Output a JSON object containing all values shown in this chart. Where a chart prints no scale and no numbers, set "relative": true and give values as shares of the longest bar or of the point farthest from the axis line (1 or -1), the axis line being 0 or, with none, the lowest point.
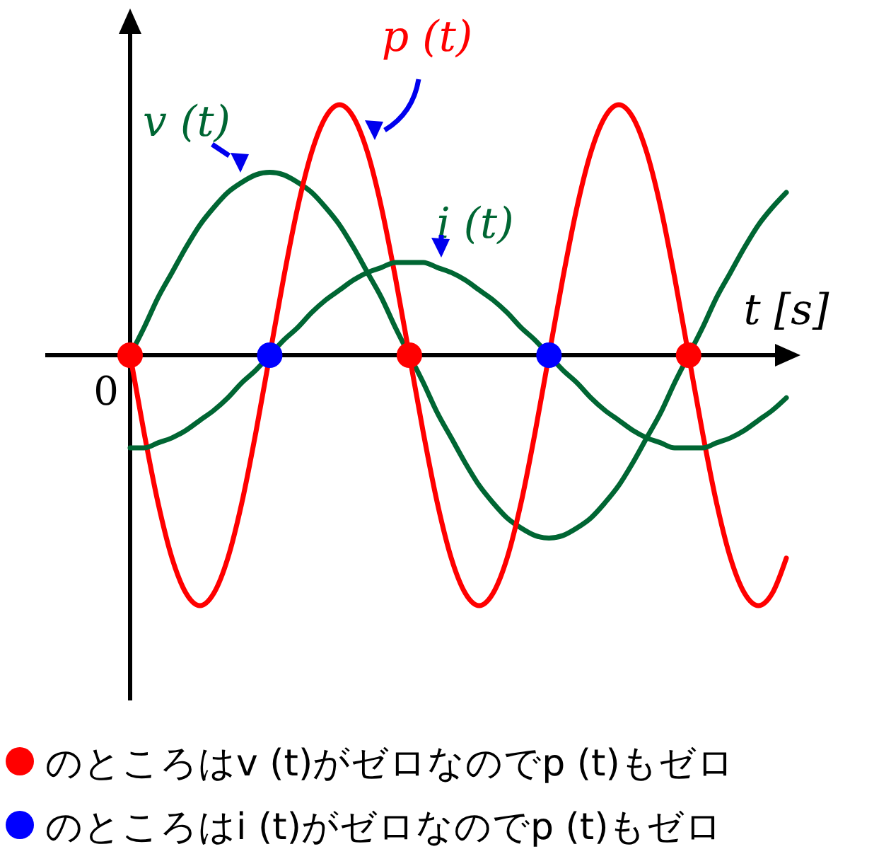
{
  "chart_data": {
    "type": "line",
    "relative": true,
    "xlabel": "t [s]",
    "annotations": [
      "0",
      "のところはv (t)がゼロなのでp (t)もゼロ",
      "のところはi (t)がゼロなのでp (t)もゼロ"
    ],
    "categories": [
      null,
      null,
      null,
      null,
      null,
      null,
      null,
      null,
      null,
      null,
      null,
      null,
      null,
      null,
      null,
      null,
      null,
      null,
      null,
      null,
      null,
      null,
      null,
      null,
      null,
      null,
      null,
      null,
      null,
      null,
      null,
      null,
      null,
      null,
      null,
      null,
      null,
      null,
      null,
      null,
      null,
      null,
      null,
      null,
      null,
      null,
      null,
      null
    ],
    "series": [
      {
        "name": "v (t)",
        "color": "#006633",
        "values": [
          0,
          0.11,
          0.23,
          0.33,
          0.43,
          0.52,
          0.59,
          0.65,
          0.69,
          0.72,
          0.73,
          0.72,
          0.69,
          0.65,
          0.59,
          0.52,
          0.43,
          0.33,
          0.23,
          0.11,
          0,
          -0.11,
          -0.23,
          -0.33,
          -0.43,
          -0.52,
          -0.59,
          -0.65,
          -0.69,
          -0.72,
          -0.73,
          -0.72,
          -0.69,
          -0.65,
          -0.59,
          -0.52,
          -0.43,
          -0.33,
          -0.23,
          -0.11,
          0,
          0.11,
          0.23,
          0.33,
          0.43,
          0.52,
          0.59,
          0.65
        ]
      },
      {
        "name": "p (t)",
        "color": "#ff0000",
        "values": [
          0,
          -0.31,
          -0.59,
          -0.81,
          -0.95,
          -1,
          -0.95,
          -0.81,
          -0.59,
          -0.31,
          0,
          0.31,
          0.59,
          0.81,
          0.95,
          1,
          0.95,
          0.81,
          0.59,
          0.31,
          0,
          -0.31,
          -0.59,
          -0.81,
          -0.95,
          -1,
          -0.95,
          -0.81,
          -0.59,
          -0.31,
          0,
          0.31,
          0.59,
          0.81,
          0.95,
          1,
          0.95,
          0.81,
          0.59,
          0.31,
          0,
          -0.31,
          -0.59,
          -0.81,
          -0.95,
          -1,
          -0.95,
          -0.81
        ]
      },
      {
        "name": "i (t)",
        "color": "#006633",
        "values": [
          -0.37,
          -0.37,
          -0.35,
          -0.33,
          -0.3,
          -0.26,
          -0.22,
          -0.17,
          -0.11,
          -0.06,
          0,
          0.06,
          0.11,
          0.17,
          0.22,
          0.26,
          0.3,
          0.33,
          0.35,
          0.37,
          0.37,
          0.37,
          0.35,
          0.33,
          0.3,
          0.26,
          0.22,
          0.17,
          0.11,
          0.06,
          0,
          -0.06,
          -0.11,
          -0.17,
          -0.22,
          -0.26,
          -0.3,
          -0.33,
          -0.35,
          -0.37,
          -0.37,
          -0.37,
          -0.35,
          -0.33,
          -0.3,
          -0.26,
          -0.22,
          -0.17
        ]
      }
    ]
  }
}
